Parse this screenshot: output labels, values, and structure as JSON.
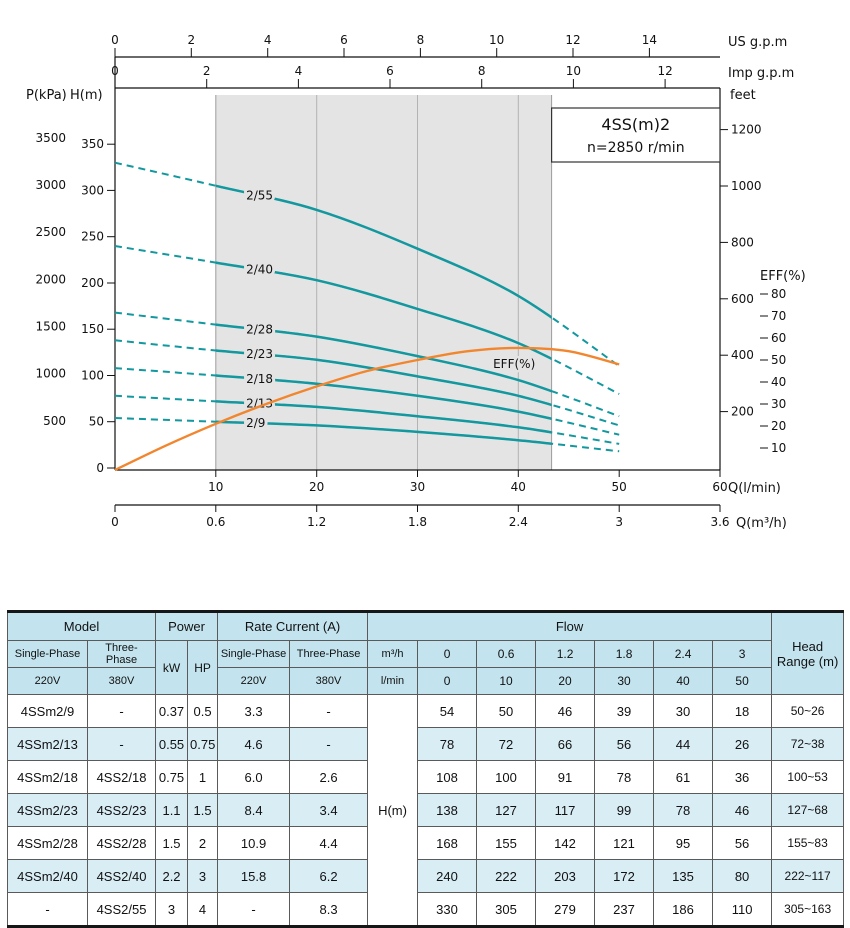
{
  "chart_data": {
    "type": "line",
    "title": "4SS(m)2",
    "subtitle": "n=2850 r/min",
    "x_lmin": [
      0,
      10,
      20,
      30,
      40,
      50
    ],
    "series": [
      {
        "name": "2/55",
        "values": [
          330,
          305,
          279,
          237,
          186,
          110
        ]
      },
      {
        "name": "2/40",
        "values": [
          240,
          222,
          203,
          172,
          135,
          80
        ]
      },
      {
        "name": "2/28",
        "values": [
          168,
          155,
          142,
          121,
          95,
          56
        ]
      },
      {
        "name": "2/23",
        "values": [
          138,
          127,
          117,
          99,
          78,
          46
        ]
      },
      {
        "name": "2/18",
        "values": [
          108,
          100,
          91,
          78,
          61,
          36
        ]
      },
      {
        "name": "2/13",
        "values": [
          78,
          72,
          66,
          56,
          44,
          26
        ]
      },
      {
        "name": "2/9",
        "values": [
          54,
          50,
          46,
          39,
          30,
          18
        ]
      }
    ],
    "eff_series": {
      "name": "EFF(%)",
      "x": [
        0,
        5,
        10,
        15,
        20,
        25,
        30,
        35,
        40,
        45,
        50
      ],
      "values": [
        0,
        11,
        21,
        30,
        38,
        45,
        50,
        54,
        55.5,
        54,
        48
      ]
    },
    "eff_label": "EFF(%)",
    "duty_range_lmin": [
      10,
      43.3
    ],
    "axes": {
      "left_pressure": {
        "label": "P(kPa)",
        "ticks": [
          500,
          1000,
          1500,
          2000,
          2500,
          3000,
          3500
        ]
      },
      "left_head": {
        "label": "H(m)",
        "ticks": [
          0,
          50,
          100,
          150,
          200,
          250,
          300,
          350
        ]
      },
      "right_feet": {
        "label": "feet",
        "ticks": [
          200,
          400,
          600,
          800,
          1000,
          1200
        ]
      },
      "right_eff": {
        "label": "EFF(%)",
        "ticks": [
          10,
          20,
          30,
          40,
          50,
          60,
          70,
          80
        ]
      },
      "top_usgpm": {
        "label": "US g.p.m",
        "ticks": [
          0,
          2,
          4,
          6,
          8,
          10,
          12,
          14
        ]
      },
      "top_impgpm": {
        "label": "Imp g.p.m",
        "ticks": [
          0,
          2,
          4,
          6,
          8,
          10,
          12
        ]
      },
      "bottom_lmin": {
        "label": "Q(l/min)",
        "ticks": [
          10,
          20,
          30,
          40,
          50,
          60
        ]
      },
      "bottom_m3h": {
        "label": "Q(m³/h)",
        "ticks": [
          0,
          0.6,
          1.2,
          1.8,
          2.4,
          3,
          3.6
        ]
      }
    },
    "colors": {
      "curve": "#12989e",
      "eff": "#f2862e",
      "shade": "#e4e4e4"
    }
  },
  "table": {
    "header": {
      "model": "Model",
      "power": "Power",
      "rate_current": "Rate Current (A)",
      "flow": "Flow",
      "head_range": "Head Range (m)",
      "single_phase": "Single-Phase",
      "three_phase": "Three-Phase",
      "v220": "220V",
      "v380": "380V",
      "kw": "kW",
      "hp": "HP",
      "m3h": "m³/h",
      "lmin": "l/min",
      "hm": "H(m)",
      "flow_m3h": [
        "0",
        "0.6",
        "1.2",
        "1.8",
        "2.4",
        "3"
      ],
      "flow_lmin": [
        "0",
        "10",
        "20",
        "30",
        "40",
        "50"
      ]
    },
    "rows": [
      {
        "single_phase": "4SSm2/9",
        "three_phase": "-",
        "kw": "0.37",
        "hp": "0.5",
        "current_single": "3.3",
        "current_three": "-",
        "heads": [
          "54",
          "50",
          "46",
          "39",
          "30",
          "18"
        ],
        "head_range": "50~26"
      },
      {
        "single_phase": "4SSm2/13",
        "three_phase": "-",
        "kw": "0.55",
        "hp": "0.75",
        "current_single": "4.6",
        "current_three": "-",
        "heads": [
          "78",
          "72",
          "66",
          "56",
          "44",
          "26"
        ],
        "head_range": "72~38"
      },
      {
        "single_phase": "4SSm2/18",
        "three_phase": "4SS2/18",
        "kw": "0.75",
        "hp": "1",
        "current_single": "6.0",
        "current_three": "2.6",
        "heads": [
          "108",
          "100",
          "91",
          "78",
          "61",
          "36"
        ],
        "head_range": "100~53"
      },
      {
        "single_phase": "4SSm2/23",
        "three_phase": "4SS2/23",
        "kw": "1.1",
        "hp": "1.5",
        "current_single": "8.4",
        "current_three": "3.4",
        "heads": [
          "138",
          "127",
          "117",
          "99",
          "78",
          "46"
        ],
        "head_range": "127~68"
      },
      {
        "single_phase": "4SSm2/28",
        "three_phase": "4SS2/28",
        "kw": "1.5",
        "hp": "2",
        "current_single": "10.9",
        "current_three": "4.4",
        "heads": [
          "168",
          "155",
          "142",
          "121",
          "95",
          "56"
        ],
        "head_range": "155~83"
      },
      {
        "single_phase": "4SSm2/40",
        "three_phase": "4SS2/40",
        "kw": "2.2",
        "hp": "3",
        "current_single": "15.8",
        "current_three": "6.2",
        "heads": [
          "240",
          "222",
          "203",
          "172",
          "135",
          "80"
        ],
        "head_range": "222~117"
      },
      {
        "single_phase": "-",
        "three_phase": "4SS2/55",
        "kw": "3",
        "hp": "4",
        "current_single": "-",
        "current_three": "8.3",
        "heads": [
          "330",
          "305",
          "279",
          "237",
          "186",
          "110"
        ],
        "head_range": "305~163"
      }
    ]
  }
}
